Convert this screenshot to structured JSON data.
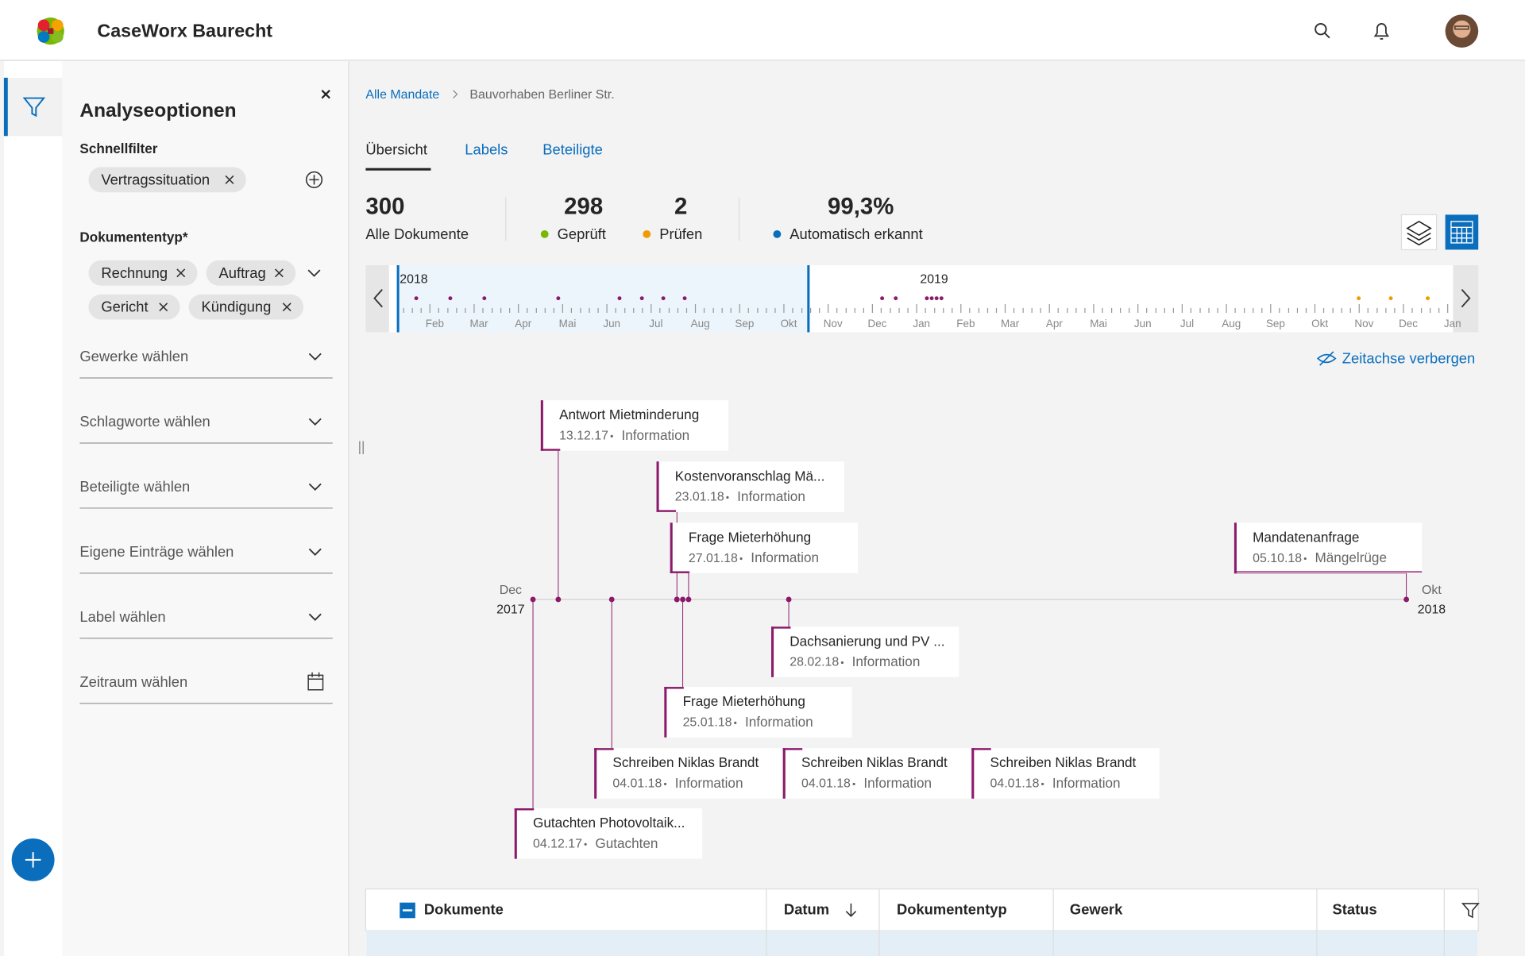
{
  "app": {
    "title": "CaseWorx Baurecht"
  },
  "sidebar": {
    "title": "Analyseoptionen",
    "quick_filter_label": "Schnellfilter",
    "quick_filters": [
      "Vertragssituation"
    ],
    "doc_type_label": "Dokumententyp*",
    "doc_types": [
      "Rechnung",
      "Auftrag",
      "Gericht",
      "Kündigung"
    ],
    "selects": [
      "Gewerke wählen",
      "Schlagworte wählen",
      "Beteiligte wählen",
      "Eigene Einträge wählen",
      "Label wählen",
      "Zeitraum wählen"
    ]
  },
  "breadcrumb": [
    "Alle Mandate",
    "Bauvorhaben Berliner Str."
  ],
  "tabs": [
    "Übersicht",
    "Labels",
    "Beteiligte"
  ],
  "stats": [
    {
      "value": "300",
      "label": "Alle Dokumente"
    },
    {
      "value": "298",
      "label": "Geprüft"
    },
    {
      "value": "2",
      "label": "Prüfen"
    },
    {
      "value": "99,3%",
      "label": "Automatisch erkannt"
    }
  ],
  "navigator": {
    "years": [
      "2018",
      "2019"
    ],
    "months": [
      "Feb",
      "Mar",
      "Apr",
      "Mai",
      "Jun",
      "Jul",
      "Aug",
      "Sep",
      "Okt",
      "Nov",
      "Dec",
      "Jan",
      "Feb",
      "Mar",
      "Apr",
      "Mai",
      "Jun",
      "Jul",
      "Aug",
      "Sep",
      "Okt",
      "Nov",
      "Dec",
      "Jan"
    ]
  },
  "hide_timeline": "Zeitachse verbergen",
  "timeline": {
    "start": {
      "month": "Dec",
      "year": "2017"
    },
    "end": {
      "month": "Okt",
      "year": "2018"
    },
    "events": [
      {
        "title": "Antwort Mietminderung",
        "date": "13.12.17",
        "type": "Information"
      },
      {
        "title": "Kostenvoranschlag Mä...",
        "date": "23.01.18",
        "type": "Information"
      },
      {
        "title": "Frage Mieterhöhung",
        "date": "27.01.18",
        "type": "Information"
      },
      {
        "title": "Mandatenanfrage",
        "date": "05.10.18",
        "type": "Mängelrüge"
      },
      {
        "title": "Dachsanierung und PV ...",
        "date": "28.02.18",
        "type": "Information"
      },
      {
        "title": "Frage Mieterhöhung",
        "date": "25.01.18",
        "type": "Information"
      },
      {
        "title": "Schreiben  Niklas Brandt",
        "date": "04.01.18",
        "type": "Information"
      },
      {
        "title": "Schreiben  Niklas Brandt",
        "date": "04.01.18",
        "type": "Information"
      },
      {
        "title": "Schreiben  Niklas Brandt",
        "date": "04.01.18",
        "type": "Information"
      },
      {
        "title": "Gutachten Photovoltaik...",
        "date": "04.12.17",
        "type": "Gutachten"
      }
    ]
  },
  "table": {
    "columns": [
      "Dokumente",
      "Datum",
      "Dokumententyp",
      "Gewerk",
      "Status"
    ]
  }
}
